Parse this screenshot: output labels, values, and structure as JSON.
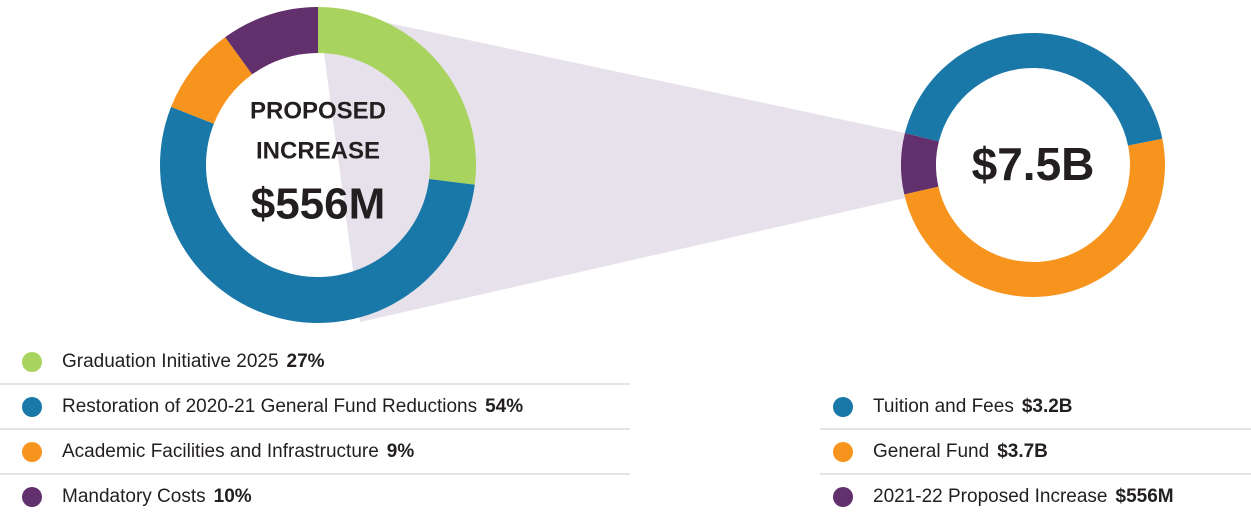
{
  "chart_data": [
    {
      "type": "pie",
      "title_lines": [
        "PROPOSED",
        "INCREASE"
      ],
      "center_label": "$556M",
      "categories": [
        "Graduation Initiative 2025",
        "Restoration of 2020-21 General Fund Reductions",
        "Academic Facilities and Infrastructure",
        "Mandatory Costs"
      ],
      "values": [
        27,
        54,
        9,
        10
      ],
      "value_labels": [
        "27%",
        "54%",
        "9%",
        "10%"
      ],
      "colors": [
        "#a8d35f",
        "#1a78a8",
        "#f7941d",
        "#62306c"
      ]
    },
    {
      "type": "pie",
      "center_label": "$7.5B",
      "categories": [
        "Tuition and Fees",
        "General Fund",
        "2021-22 Proposed Increase"
      ],
      "values": [
        3.2,
        3.7,
        0.556
      ],
      "value_labels": [
        "$3.2B",
        "$3.7B",
        "$556M"
      ],
      "colors": [
        "#1a78a8",
        "#f7941d",
        "#62306c"
      ]
    }
  ]
}
